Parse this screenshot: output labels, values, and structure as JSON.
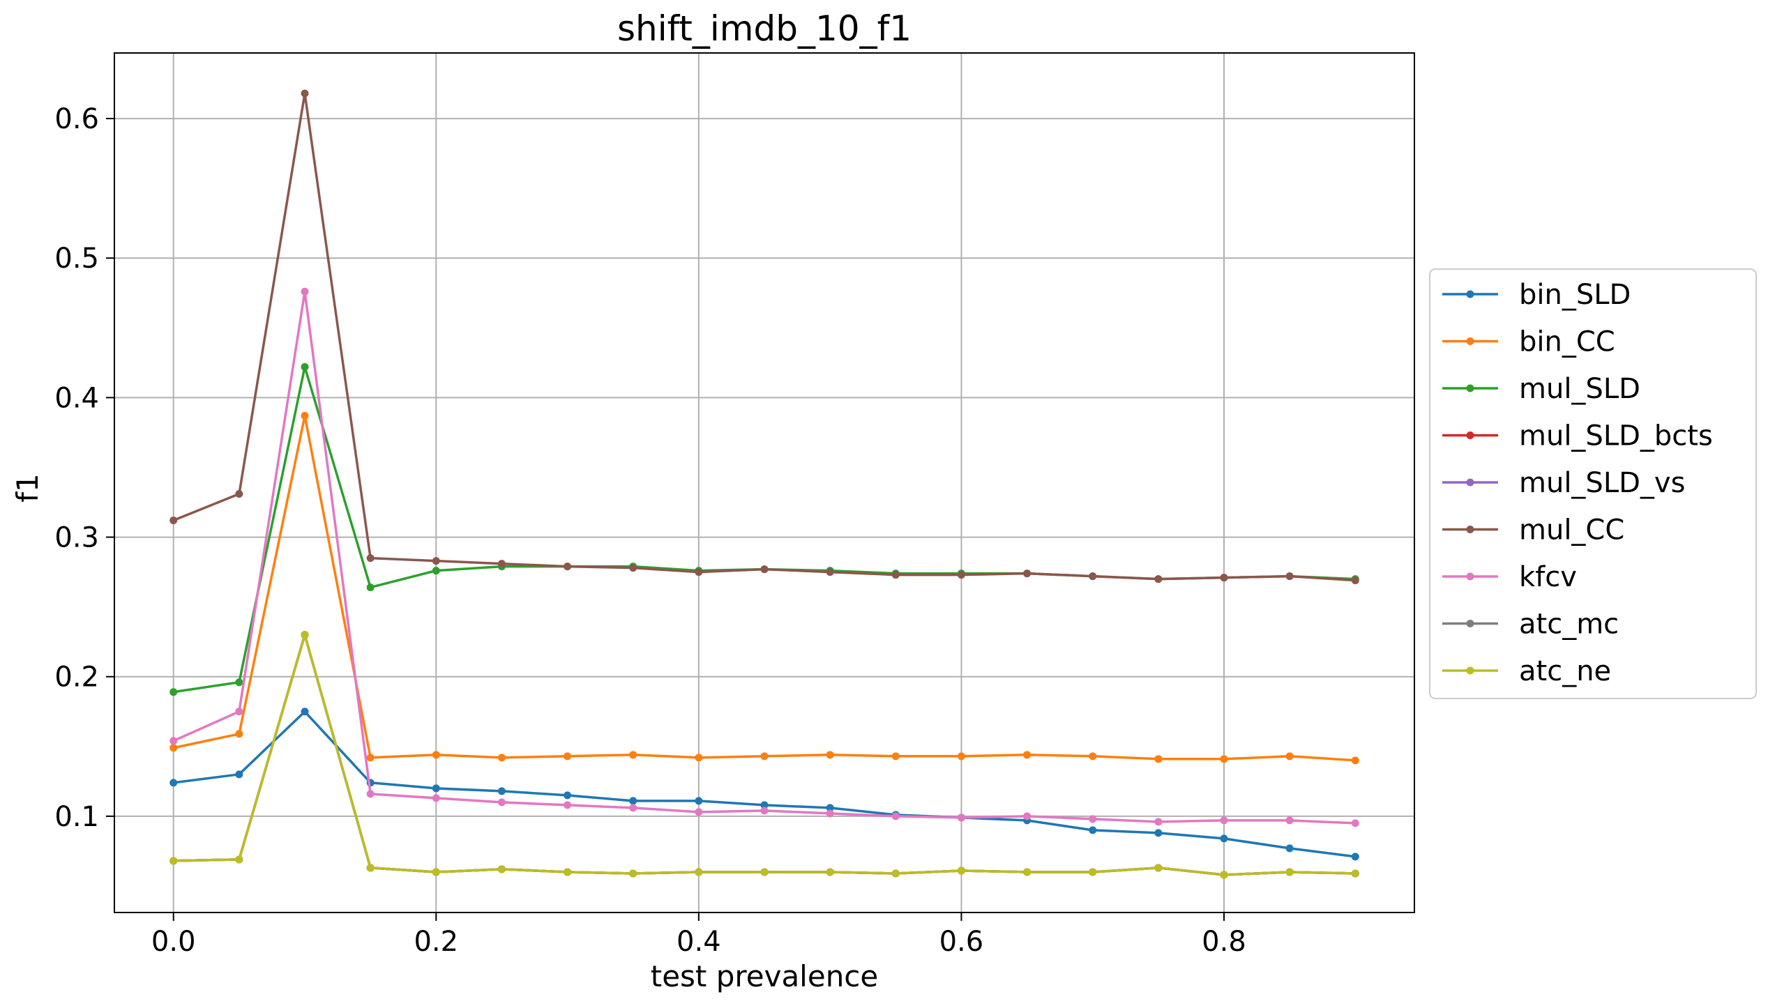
{
  "chart_data": {
    "type": "line",
    "title": "shift_imdb_10_f1",
    "xlabel": "test prevalence",
    "ylabel": "f1",
    "xlim": [
      -0.045,
      0.945
    ],
    "ylim": [
      0.031,
      0.647
    ],
    "xticks": [
      0.0,
      0.2,
      0.4,
      0.6,
      0.8
    ],
    "xtick_labels": [
      "0.0",
      "0.2",
      "0.4",
      "0.6",
      "0.8"
    ],
    "yticks": [
      0.1,
      0.2,
      0.3,
      0.4,
      0.5,
      0.6
    ],
    "ytick_labels": [
      "0.1",
      "0.2",
      "0.3",
      "0.4",
      "0.5",
      "0.6"
    ],
    "grid": true,
    "legend_position": "right, outside plot",
    "x": [
      0.0,
      0.05,
      0.1,
      0.15,
      0.2,
      0.25,
      0.3,
      0.35,
      0.4,
      0.45,
      0.5,
      0.55,
      0.6,
      0.65,
      0.7,
      0.75,
      0.8,
      0.85,
      0.9
    ],
    "series": [
      {
        "name": "bin_SLD",
        "color": "#1f77b4",
        "values": [
          0.124,
          0.13,
          0.175,
          0.124,
          0.12,
          0.118,
          0.115,
          0.111,
          0.111,
          0.108,
          0.106,
          0.101,
          0.099,
          0.097,
          0.09,
          0.088,
          0.084,
          0.077,
          0.071
        ]
      },
      {
        "name": "bin_CC",
        "color": "#ff7f0e",
        "values": [
          0.149,
          0.159,
          0.387,
          0.142,
          0.144,
          0.142,
          0.143,
          0.144,
          0.142,
          0.143,
          0.144,
          0.143,
          0.143,
          0.144,
          0.143,
          0.141,
          0.141,
          0.143,
          0.14
        ]
      },
      {
        "name": "mul_SLD",
        "color": "#2ca02c",
        "values": [
          0.189,
          0.196,
          0.422,
          0.264,
          0.276,
          0.279,
          0.279,
          0.279,
          0.276,
          0.277,
          0.276,
          0.274,
          0.274,
          0.274,
          0.272,
          0.27,
          0.271,
          0.272,
          0.27
        ]
      },
      {
        "name": "mul_SLD_bcts",
        "color": "#d62728",
        "values": [
          0.068,
          0.069,
          0.23,
          0.063,
          0.06,
          0.062,
          0.06,
          0.059,
          0.06,
          0.06,
          0.06,
          0.059,
          0.061,
          0.06,
          0.06,
          0.063,
          0.058,
          0.06,
          0.059
        ]
      },
      {
        "name": "mul_SLD_vs",
        "color": "#9467bd",
        "values": [
          0.068,
          0.069,
          0.23,
          0.063,
          0.06,
          0.062,
          0.06,
          0.059,
          0.06,
          0.06,
          0.06,
          0.059,
          0.061,
          0.06,
          0.06,
          0.063,
          0.058,
          0.06,
          0.059
        ]
      },
      {
        "name": "mul_CC",
        "color": "#8c564b",
        "values": [
          0.312,
          0.331,
          0.618,
          0.285,
          0.283,
          0.281,
          0.279,
          0.278,
          0.275,
          0.277,
          0.275,
          0.273,
          0.273,
          0.274,
          0.272,
          0.27,
          0.271,
          0.272,
          0.269
        ]
      },
      {
        "name": "kfcv",
        "color": "#e377c2",
        "values": [
          0.154,
          0.175,
          0.476,
          0.116,
          0.113,
          0.11,
          0.108,
          0.106,
          0.103,
          0.104,
          0.102,
          0.1,
          0.099,
          0.1,
          0.098,
          0.096,
          0.097,
          0.097,
          0.095
        ]
      },
      {
        "name": "atc_mc",
        "color": "#7f7f7f",
        "values": [
          0.068,
          0.069,
          0.23,
          0.063,
          0.06,
          0.062,
          0.06,
          0.059,
          0.06,
          0.06,
          0.06,
          0.059,
          0.061,
          0.06,
          0.06,
          0.063,
          0.058,
          0.06,
          0.059
        ]
      },
      {
        "name": "atc_ne",
        "color": "#bcbd22",
        "values": [
          0.068,
          0.069,
          0.23,
          0.063,
          0.06,
          0.062,
          0.06,
          0.059,
          0.06,
          0.06,
          0.06,
          0.059,
          0.061,
          0.06,
          0.06,
          0.063,
          0.058,
          0.06,
          0.059
        ]
      }
    ]
  }
}
